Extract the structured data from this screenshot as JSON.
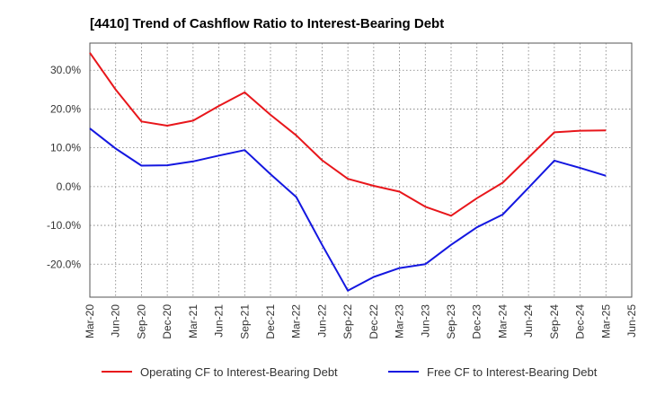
{
  "chart_data": {
    "type": "line",
    "title": "[4410]  Trend of Cashflow Ratio to Interest-Bearing Debt",
    "xlabel": "",
    "ylabel": "",
    "x": [
      "Mar-20",
      "Jun-20",
      "Sep-20",
      "Dec-20",
      "Mar-21",
      "Jun-21",
      "Sep-21",
      "Dec-21",
      "Mar-22",
      "Jun-22",
      "Sep-22",
      "Dec-22",
      "Mar-23",
      "Jun-23",
      "Sep-23",
      "Dec-23",
      "Mar-24",
      "Jun-24",
      "Sep-24",
      "Dec-24",
      "Mar-25",
      "Jun-25"
    ],
    "x_tick_labels": [
      "Mar-20",
      "Jun-20",
      "Sep-20",
      "Dec-20",
      "Mar-21",
      "Jun-21",
      "Sep-21",
      "Dec-21",
      "Mar-22",
      "Jun-22",
      "Sep-22",
      "Dec-22",
      "Mar-23",
      "Jun-23",
      "Sep-23",
      "Dec-23",
      "Mar-24",
      "Jun-24",
      "Sep-24",
      "Dec-24",
      "Mar-25",
      "Jun-25"
    ],
    "y_ticks": [
      30,
      20,
      10,
      0,
      -10,
      -20
    ],
    "y_tick_labels": [
      "30.0%",
      "20.0%",
      "10.0%",
      "0.0%",
      "-10.0%",
      "-20.0%"
    ],
    "ylim": [
      -28.5,
      37
    ],
    "grid": true,
    "legend_position": "bottom",
    "series": [
      {
        "name": "Operating CF to Interest-Bearing Debt",
        "color": "#e8161b",
        "values": [
          34.5,
          25.0,
          16.8,
          15.7,
          17.0,
          20.8,
          24.3,
          18.5,
          13.2,
          6.8,
          2.0,
          0.2,
          -1.3,
          -5.2,
          -7.5,
          -3.0,
          1.0,
          7.5,
          14.0,
          14.4,
          14.5,
          null
        ]
      },
      {
        "name": "Free CF to Interest-Bearing Debt",
        "color": "#1417e0",
        "values": [
          15.0,
          9.8,
          5.4,
          5.5,
          6.5,
          8.0,
          9.4,
          3.2,
          -2.7,
          -15.0,
          -26.8,
          -23.3,
          -21.0,
          -20.0,
          -15.0,
          -10.5,
          -7.2,
          -0.3,
          6.7,
          4.8,
          2.8,
          null
        ]
      }
    ]
  }
}
